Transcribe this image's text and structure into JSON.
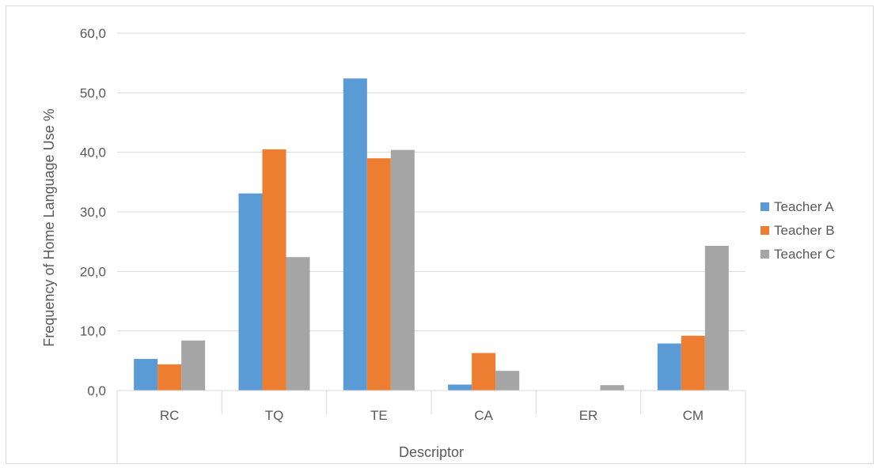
{
  "chart_data": {
    "type": "bar",
    "title": "",
    "xlabel": "Descriptor",
    "ylabel": "Frequency of Home Language Use %",
    "categories": [
      "RC",
      "TQ",
      "TE",
      "CA",
      "ER",
      "CM"
    ],
    "series": [
      {
        "name": "Teacher A",
        "color": "#5b9bd5",
        "values": [
          5.3,
          33.1,
          52.4,
          1.0,
          0.0,
          7.9
        ]
      },
      {
        "name": "Teacher B",
        "color": "#ed7d31",
        "values": [
          4.4,
          40.5,
          39.0,
          6.3,
          0.0,
          9.2
        ]
      },
      {
        "name": "Teacher C",
        "color": "#a5a5a5",
        "values": [
          8.4,
          22.4,
          40.4,
          3.3,
          0.9,
          24.3
        ]
      }
    ],
    "ylim": [
      0,
      60
    ],
    "yticks": [
      "0,0",
      "10,0",
      "20,0",
      "30,0",
      "40,0",
      "50,0",
      "60,0"
    ],
    "grid": true,
    "legend_position": "right"
  }
}
